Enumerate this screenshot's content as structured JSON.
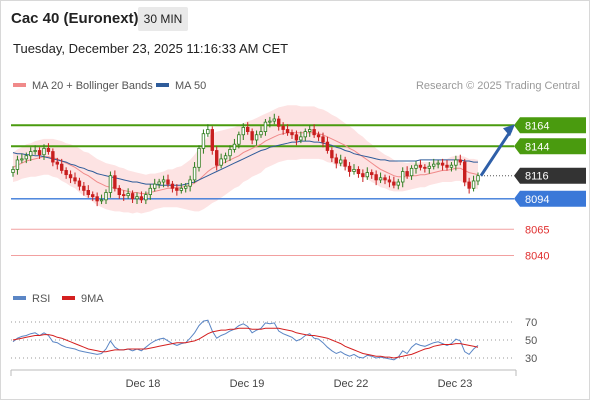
{
  "header": {
    "title": "Cac 40 (Euronext)",
    "timeframe": "30 MIN",
    "datetime": "Tuesday, December 23, 2025 11:16:33 AM CET"
  },
  "legend": {
    "main": [
      {
        "label": "MA 20 + Bollinger Bands",
        "color": "#f08a8a"
      },
      {
        "label": "MA 50",
        "color": "#2f5c9a"
      }
    ],
    "rsi": [
      {
        "label": "RSI",
        "color": "#5b86c5"
      },
      {
        "label": "9MA",
        "color": "#d42020"
      }
    ],
    "credit": "Research © 2025 Trading Central"
  },
  "chart_data": [
    {
      "type": "candlestick",
      "title": "",
      "x_labels": [
        "Dec 18",
        "Dec 19",
        "Dec 22",
        "Dec 23"
      ],
      "price_levels": [
        {
          "value": 8164,
          "label": "8164",
          "kind": "resistance",
          "color": "#4a9b0f"
        },
        {
          "value": 8144,
          "label": "8144",
          "kind": "resistance",
          "color": "#4a9b0f"
        },
        {
          "value": 8116,
          "label": "8116",
          "kind": "last-price",
          "color": "#333333"
        },
        {
          "value": 8094,
          "label": "8094",
          "kind": "support",
          "color": "#3a78d8"
        },
        {
          "value": 8065,
          "label": "8065",
          "kind": "support",
          "color": "#e03030"
        },
        {
          "value": 8040,
          "label": "8040",
          "kind": "support",
          "color": "#e03030"
        }
      ],
      "ylim": [
        8030,
        8185
      ],
      "close_series": [
        8122,
        8131,
        8132,
        8135,
        8139,
        8140,
        8136,
        8142,
        8139,
        8129,
        8127,
        8121,
        8117,
        8114,
        8111,
        8106,
        8102,
        8098,
        8096,
        8092,
        8093,
        8100,
        8116,
        8104,
        8098,
        8097,
        8099,
        8094,
        8096,
        8093,
        8098,
        8104,
        8108,
        8110,
        8112,
        8108,
        8104,
        8102,
        8104,
        8106,
        8112,
        8124,
        8142,
        8156,
        8160,
        8140,
        8126,
        8132,
        8135,
        8141,
        8146,
        8155,
        8162,
        8158,
        8150,
        8155,
        8158,
        8167,
        8168,
        8170,
        8163,
        8160,
        8157,
        8155,
        8150,
        8153,
        8158,
        8160,
        8155,
        8153,
        8148,
        8140,
        8133,
        8128,
        8131,
        8125,
        8120,
        8122,
        8118,
        8115,
        8119,
        8117,
        8112,
        8114,
        8112,
        8110,
        8107,
        8110,
        8120,
        8116,
        8123,
        8126,
        8124,
        8123,
        8125,
        8127,
        8128,
        8126,
        8124,
        8126,
        8131,
        8129,
        8110,
        8104,
        8111,
        8116
      ],
      "ma20": [
        8124,
        8126,
        8128,
        8130,
        8131,
        8132,
        8133,
        8134,
        8134,
        8133,
        8132,
        8130,
        8128,
        8126,
        8124,
        8121,
        8118,
        8116,
        8113,
        8110,
        8108,
        8106,
        8105,
        8104,
        8103,
        8102,
        8101,
        8100,
        8100,
        8099,
        8099,
        8100,
        8101,
        8102,
        8103,
        8104,
        8104,
        8105,
        8105,
        8106,
        8107,
        8109,
        8112,
        8116,
        8120,
        8123,
        8125,
        8127,
        8129,
        8131,
        8133,
        8135,
        8138,
        8140,
        8142,
        8144,
        8146,
        8149,
        8151,
        8153,
        8155,
        8156,
        8157,
        8157,
        8157,
        8157,
        8157,
        8157,
        8157,
        8156,
        8155,
        8153,
        8151,
        8149,
        8147,
        8145,
        8142,
        8140,
        8137,
        8134,
        8131,
        8128,
        8125,
        8122,
        8120,
        8118,
        8116,
        8115,
        8115,
        8115,
        8116,
        8116,
        8117,
        8117,
        8118,
        8119,
        8120,
        8121,
        8121,
        8122,
        8123,
        8123,
        8121,
        8119,
        8118,
        8117
      ],
      "ma50": [
        8138,
        8137,
        8137,
        8136,
        8136,
        8135,
        8135,
        8134,
        8133,
        8132,
        8131,
        8130,
        8129,
        8127,
        8126,
        8124,
        8123,
        8121,
        8120,
        8118,
        8117,
        8116,
        8115,
        8114,
        8113,
        8112,
        8111,
        8110,
        8110,
        8109,
        8108,
        8108,
        8108,
        8107,
        8107,
        8107,
        8107,
        8107,
        8107,
        8108,
        8109,
        8110,
        8112,
        8114,
        8116,
        8118,
        8120,
        8122,
        8124,
        8126,
        8128,
        8130,
        8132,
        8134,
        8136,
        8138,
        8140,
        8141,
        8143,
        8144,
        8145,
        8146,
        8147,
        8148,
        8148,
        8149,
        8149,
        8149,
        8148,
        8148,
        8147,
        8146,
        8145,
        8143,
        8142,
        8140,
        8139,
        8137,
        8136,
        8135,
        8134,
        8133,
        8132,
        8131,
        8131,
        8130,
        8130,
        8130,
        8130,
        8130,
        8130,
        8130,
        8131,
        8131,
        8131,
        8131,
        8131,
        8131,
        8131,
        8131,
        8131,
        8131,
        8130,
        8130,
        8129,
        8129
      ],
      "bb_width": [
        14,
        15,
        15,
        16,
        16,
        17,
        17,
        17,
        17,
        18,
        18,
        19,
        19,
        20,
        20,
        21,
        21,
        22,
        22,
        22,
        22,
        22,
        22,
        22,
        21,
        21,
        20,
        20,
        19,
        19,
        18,
        18,
        17,
        17,
        17,
        18,
        18,
        19,
        20,
        22,
        24,
        27,
        30,
        32,
        33,
        33,
        33,
        32,
        31,
        30,
        29,
        29,
        28,
        28,
        27,
        27,
        27,
        26,
        26,
        26,
        26,
        26,
        26,
        26,
        26,
        25,
        25,
        25,
        25,
        24,
        24,
        24,
        23,
        23,
        22,
        21,
        21,
        20,
        19,
        19,
        18,
        18,
        17,
        17,
        16,
        16,
        15,
        14,
        14,
        13,
        13,
        12,
        12,
        12,
        11,
        11,
        11,
        11,
        11,
        12,
        12,
        12,
        13,
        13,
        14,
        14
      ],
      "projection_arrow": {
        "from": 8116,
        "to": 8164
      }
    },
    {
      "type": "line",
      "title": "",
      "legend": [
        "RSI",
        "9MA"
      ],
      "y_ticks": [
        70,
        50,
        30
      ],
      "ylim": [
        20,
        82
      ],
      "rsi_series": [
        48,
        52,
        54,
        55,
        57,
        58,
        55,
        58,
        55,
        48,
        47,
        44,
        42,
        41,
        40,
        38,
        37,
        36,
        35,
        34,
        35,
        40,
        49,
        42,
        39,
        39,
        40,
        38,
        40,
        38,
        42,
        46,
        49,
        51,
        52,
        49,
        46,
        44,
        46,
        47,
        52,
        58,
        66,
        71,
        72,
        60,
        52,
        55,
        57,
        60,
        62,
        66,
        68,
        65,
        58,
        61,
        63,
        69,
        68,
        69,
        60,
        57,
        55,
        53,
        49,
        51,
        55,
        57,
        52,
        51,
        47,
        42,
        38,
        35,
        37,
        34,
        32,
        34,
        31,
        30,
        33,
        32,
        30,
        31,
        30,
        29,
        28,
        31,
        38,
        35,
        42,
        46,
        44,
        43,
        45,
        47,
        48,
        46,
        44,
        46,
        51,
        49,
        37,
        34,
        40,
        44
      ],
      "ma9_series": [
        50,
        51,
        52,
        53,
        54,
        55,
        55,
        56,
        56,
        55,
        53,
        52,
        50,
        48,
        46,
        44,
        42,
        40,
        39,
        38,
        37,
        37,
        38,
        39,
        39,
        39,
        40,
        40,
        40,
        40,
        40,
        41,
        42,
        43,
        44,
        45,
        46,
        47,
        47,
        47,
        48,
        49,
        51,
        54,
        57,
        59,
        60,
        61,
        61,
        62,
        62,
        63,
        63,
        63,
        62,
        62,
        62,
        63,
        63,
        63,
        63,
        62,
        61,
        60,
        58,
        57,
        56,
        55,
        55,
        54,
        53,
        52,
        50,
        48,
        46,
        43,
        41,
        39,
        37,
        35,
        34,
        33,
        32,
        32,
        31,
        31,
        30,
        31,
        32,
        33,
        34,
        36,
        38,
        40,
        41,
        43,
        44,
        45,
        45,
        45,
        46,
        46,
        45,
        44,
        43,
        42
      ]
    }
  ]
}
